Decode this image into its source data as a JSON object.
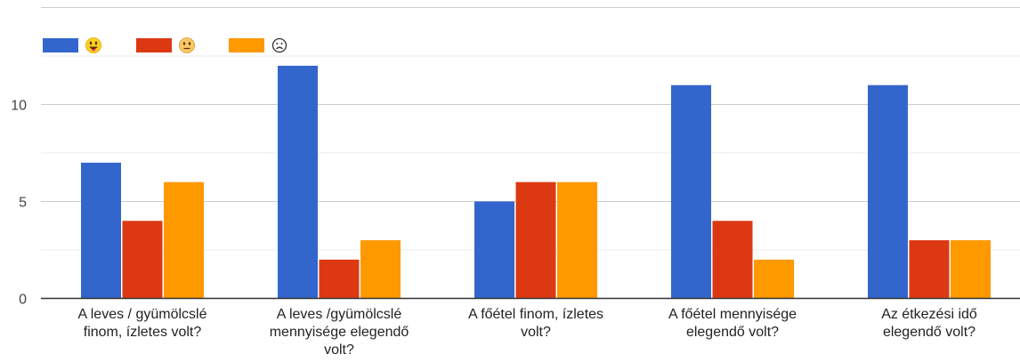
{
  "chart_data": {
    "type": "bar",
    "categories": [
      [
        "A leves / gyümölcslé",
        "finom, ízletes volt?"
      ],
      [
        "A leves /gyümölcslé",
        "mennyisége elegendő",
        "volt?"
      ],
      [
        "A főétel finom, ízletes",
        "volt?"
      ],
      [
        "A főétel mennyisége",
        "elegendő volt?"
      ],
      [
        "Az étkezési idő",
        "elegendő volt?"
      ]
    ],
    "series": [
      {
        "name": "😛",
        "color": "#3366cc",
        "values": [
          7,
          12,
          5,
          11,
          11
        ]
      },
      {
        "name": "😐",
        "color": "#dc3912",
        "values": [
          4,
          2,
          6,
          4,
          3
        ]
      },
      {
        "name": "☹",
        "color": "#ff9900",
        "values": [
          6,
          3,
          6,
          2,
          3
        ]
      }
    ],
    "ylim": [
      0,
      15
    ],
    "yticks": [
      0,
      5,
      10
    ],
    "grid": true,
    "legend": "top-left"
  }
}
